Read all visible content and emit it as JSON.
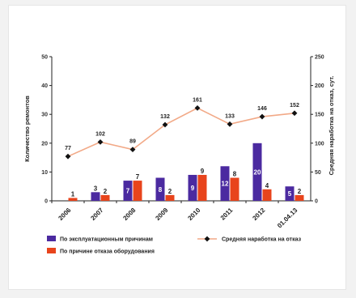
{
  "chart_data": {
    "type": "bar",
    "categories": [
      "2006",
      "2007",
      "2008",
      "2009",
      "2010",
      "2011",
      "2012",
      "01.04.13"
    ],
    "series": [
      {
        "name": "По эксплуатационным причинам",
        "kind": "bar",
        "axis": "left",
        "color": "#4b2aa0",
        "values": [
          0,
          3,
          7,
          8,
          9,
          12,
          20,
          5
        ],
        "labels": [
          "",
          "3",
          "7",
          "8",
          "9",
          "12",
          "20",
          "5"
        ]
      },
      {
        "name": "По причине отказа оборудования",
        "kind": "bar",
        "axis": "left",
        "color": "#e8441c",
        "values": [
          1,
          2,
          7,
          2,
          9,
          8,
          4,
          2
        ],
        "labels": [
          "1",
          "2",
          "7",
          "2",
          "9",
          "8",
          "4",
          "2"
        ]
      },
      {
        "name": "Средняя наработка на отказ",
        "kind": "line",
        "axis": "right",
        "line_color": "#f2a987",
        "marker_color": "#111111",
        "values": [
          77,
          102,
          89,
          132,
          161,
          133,
          146,
          152
        ],
        "labels": [
          "77",
          "102",
          "89",
          "132",
          "161",
          "133",
          "146",
          "152"
        ]
      }
    ],
    "ylabel": "Количество ремонтов",
    "y2label": "Средняя наработка на отказ, сут.",
    "ylim": [
      0,
      50
    ],
    "yticks": [
      "0",
      "10",
      "20",
      "30",
      "40",
      "50"
    ],
    "y2lim": [
      0,
      250
    ],
    "y2ticks": [
      "0",
      "50",
      "100",
      "150",
      "200",
      "250"
    ],
    "legend_position": "bottom"
  }
}
